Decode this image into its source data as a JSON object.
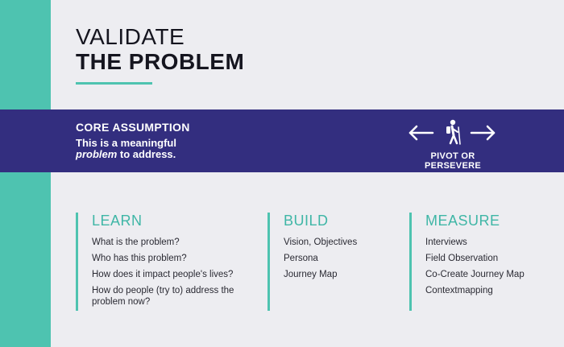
{
  "header": {
    "title_line1": "VALIDATE",
    "title_line2": "THE PROBLEM"
  },
  "band": {
    "title": "CORE ASSUMPTION",
    "text_part1": "This is a meaningful",
    "text_part2": "problem",
    "text_part3": "to address.",
    "pivot_label": "PIVOT OR PERSEVERE",
    "icons": [
      "arrow-left-icon",
      "hiker-icon",
      "arrow-right-icon"
    ]
  },
  "columns": {
    "learn": {
      "heading": "LEARN",
      "items": [
        "What is the problem?",
        "Who has this problem?",
        "How does it impact people's lives?",
        "How do people (try to) address the problem now?"
      ]
    },
    "build": {
      "heading": "BUILD",
      "items": [
        "Vision, Objectives",
        "Persona",
        "Journey Map"
      ]
    },
    "measure": {
      "heading": "MEASURE",
      "items": [
        "Interviews",
        "Field Observation",
        "Co-Create Journey Map",
        "Contextmapping"
      ]
    }
  },
  "colors": {
    "accent": "#4ec3b0",
    "band": "#332e7f",
    "background": "#ededf1"
  }
}
